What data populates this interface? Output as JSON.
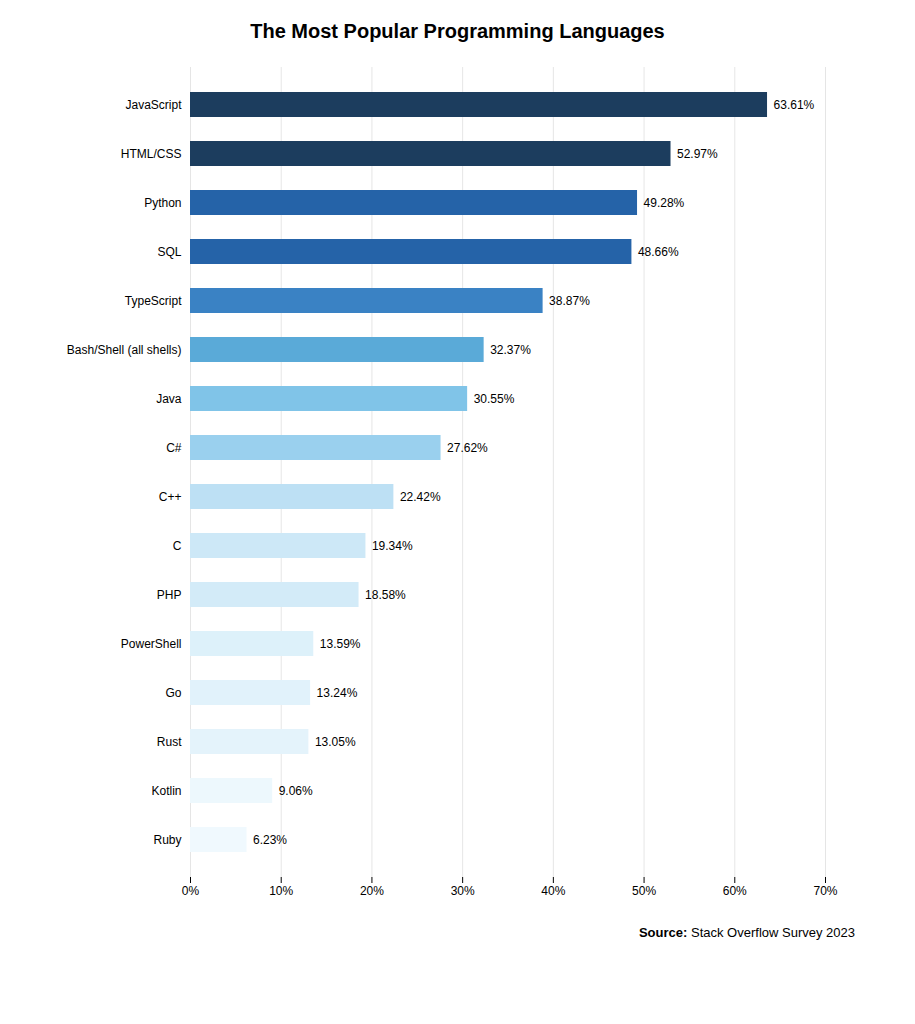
{
  "chart_data": {
    "type": "bar",
    "orientation": "horizontal",
    "title": "The Most Popular Programming Languages",
    "categories": [
      "JavaScript",
      "HTML/CSS",
      "Python",
      "SQL",
      "TypeScript",
      "Bash/Shell (all shells)",
      "Java",
      "C#",
      "C++",
      "C",
      "PHP",
      "PowerShell",
      "Go",
      "Rust",
      "Kotlin",
      "Ruby"
    ],
    "values": [
      63.61,
      52.97,
      49.28,
      48.66,
      38.87,
      32.37,
      30.55,
      27.62,
      22.42,
      19.34,
      18.58,
      13.59,
      13.24,
      13.05,
      9.06,
      6.23
    ],
    "value_labels": [
      "63.61%",
      "52.97%",
      "49.28%",
      "48.66%",
      "38.87%",
      "32.37%",
      "30.55%",
      "27.62%",
      "22.42%",
      "19.34%",
      "18.58%",
      "13.59%",
      "13.24%",
      "13.05%",
      "9.06%",
      "6.23%"
    ],
    "colors": [
      "#1c3d5e",
      "#1c3d5e",
      "#2563a8",
      "#2563a8",
      "#3a82c4",
      "#5aaad8",
      "#80c4e8",
      "#9ad0ee",
      "#bde0f4",
      "#cde8f7",
      "#d3ebf8",
      "#ddf1fa",
      "#e1f2fb",
      "#e4f3fb",
      "#edf8fd",
      "#f0f9fe"
    ],
    "xlim": [
      0,
      70
    ],
    "xticks": [
      {
        "value": 0,
        "label": "0%"
      },
      {
        "value": 10,
        "label": "10%"
      },
      {
        "value": 20,
        "label": "20%"
      },
      {
        "value": 30,
        "label": "30%"
      },
      {
        "value": 40,
        "label": "40%"
      },
      {
        "value": 50,
        "label": "50%"
      },
      {
        "value": 60,
        "label": "60%"
      },
      {
        "value": 70,
        "label": "70%"
      }
    ],
    "grid": true,
    "data_labels": true,
    "annotations": [
      "Source:",
      "Stack Overflow Survey 2023"
    ]
  }
}
